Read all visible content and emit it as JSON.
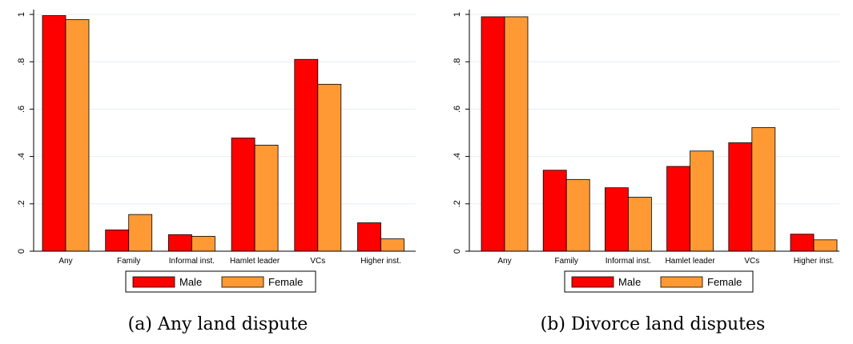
{
  "colors": {
    "male": "#ff0000",
    "female": "#ff9933",
    "grid": "#e6eef2",
    "axis": "#000000"
  },
  "chart_data": [
    {
      "type": "bar",
      "caption": "(a) Any land dispute",
      "categories": [
        "Any",
        "Family",
        "Informal inst.",
        "Hamlet leader",
        "VCs",
        "Higher inst."
      ],
      "series": [
        {
          "name": "Male",
          "values": [
            0.995,
            0.09,
            0.07,
            0.478,
            0.81,
            0.12
          ]
        },
        {
          "name": "Female",
          "values": [
            0.978,
            0.155,
            0.063,
            0.448,
            0.705,
            0.052
          ]
        }
      ],
      "yticks": [
        0,
        0.2,
        0.4,
        0.6,
        0.8,
        1
      ],
      "ytick_labels": [
        "0",
        ".2",
        ".4",
        ".6",
        ".8",
        "1"
      ],
      "ylim": [
        0,
        1
      ],
      "grid": true,
      "legend": "bottom"
    },
    {
      "type": "bar",
      "caption": "(b) Divorce land disputes",
      "categories": [
        "Any",
        "Family",
        "Informal inst.",
        "Hamlet leader",
        "VCs",
        "Higher inst."
      ],
      "series": [
        {
          "name": "Male",
          "values": [
            0.99,
            0.342,
            0.268,
            0.358,
            0.458,
            0.072
          ]
        },
        {
          "name": "Female",
          "values": [
            0.99,
            0.303,
            0.228,
            0.423,
            0.522,
            0.048
          ]
        }
      ],
      "yticks": [
        0,
        0.2,
        0.4,
        0.6,
        0.8,
        1
      ],
      "ytick_labels": [
        "0",
        ".2",
        ".4",
        ".6",
        ".8",
        "1"
      ],
      "ylim": [
        0,
        1
      ],
      "grid": true,
      "legend": "bottom"
    }
  ]
}
